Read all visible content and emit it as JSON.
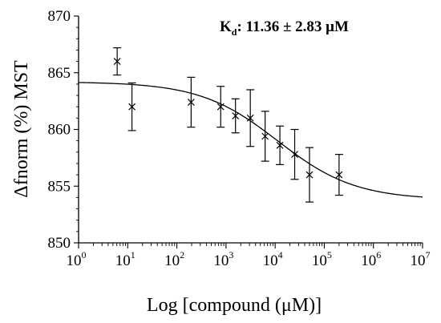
{
  "chart_data": {
    "type": "scatter",
    "xlabel": "Log [compound (μM)]",
    "ylabel": "Δfnorm (%) MST",
    "x_scale": "log10",
    "xlim": [
      1,
      10000000
    ],
    "ylim": [
      850,
      870
    ],
    "x_tick_bases": [
      "10",
      "10",
      "10",
      "10",
      "10",
      "10",
      "10",
      "10"
    ],
    "x_tick_exponents": [
      "0",
      "1",
      "2",
      "3",
      "4",
      "5",
      "6",
      "7"
    ],
    "x_tick_values": [
      1,
      10,
      100,
      1000,
      10000,
      100000,
      1000000,
      10000000
    ],
    "y_tick_values": [
      850,
      855,
      860,
      865,
      870
    ],
    "y_tick_labels": [
      "850",
      "855",
      "860",
      "865",
      "870"
    ],
    "annotation": {
      "prefix": "K",
      "subscript": "d",
      "suffix": ": 11.36 ± 2.83 μM"
    },
    "series": [
      {
        "points": [
          {
            "x": 6.1,
            "y": 866.0,
            "err": 1.2
          },
          {
            "x": 12.2,
            "y": 862.0,
            "err": 2.1
          },
          {
            "x": 195,
            "y": 862.4,
            "err": 2.2
          },
          {
            "x": 780,
            "y": 862.0,
            "err": 1.8
          },
          {
            "x": 1560,
            "y": 861.2,
            "err": 1.5
          },
          {
            "x": 3125,
            "y": 861.0,
            "err": 2.5
          },
          {
            "x": 6250,
            "y": 859.4,
            "err": 2.2
          },
          {
            "x": 12500,
            "y": 858.6,
            "err": 1.7
          },
          {
            "x": 25000,
            "y": 857.8,
            "err": 2.2
          },
          {
            "x": 50000,
            "y": 856.0,
            "err": 2.4
          },
          {
            "x": 200000,
            "y": 856.0,
            "err": 1.8
          }
        ]
      }
    ],
    "fit": {
      "model": "logistic",
      "top": 864.2,
      "bottom": 853.8,
      "midpoint_log10_x": 4.05,
      "hill_slope": 0.55
    }
  }
}
